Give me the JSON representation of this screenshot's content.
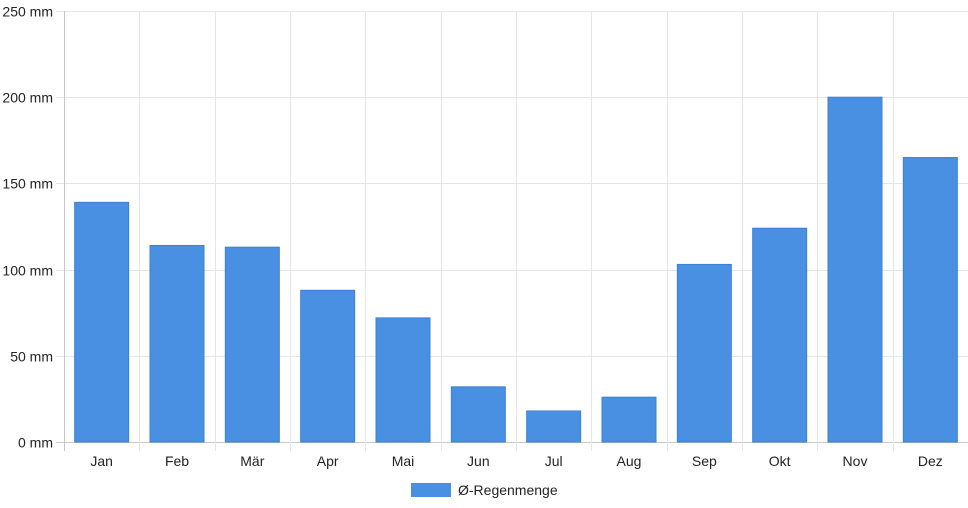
{
  "chart_data": {
    "type": "bar",
    "categories": [
      "Jan",
      "Feb",
      "Mär",
      "Apr",
      "Mai",
      "Jun",
      "Jul",
      "Aug",
      "Sep",
      "Okt",
      "Nov",
      "Dez"
    ],
    "series": [
      {
        "name": "Ø-Regenmenge",
        "values": [
          139,
          114,
          113,
          88,
          72,
          32,
          18,
          26,
          103,
          124,
          200,
          165
        ],
        "color": "#4a90e2"
      }
    ],
    "y_ticks": [
      "0 mm",
      "50 mm",
      "100 mm",
      "150 mm",
      "200 mm",
      "250 mm"
    ],
    "ylim": [
      0,
      250
    ],
    "grid": true,
    "legend_position": "bottom"
  }
}
